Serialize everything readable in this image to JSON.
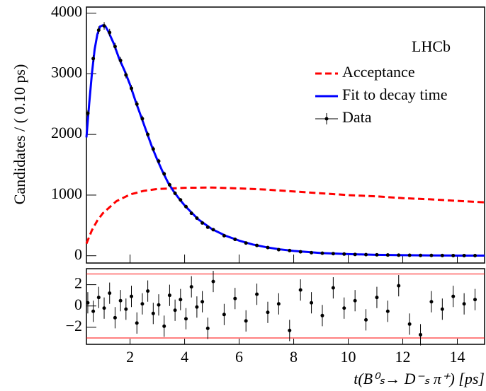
{
  "chart_data": [
    {
      "type": "line",
      "annotation": "LHCb",
      "y_label": "Candidates / ( 0.10 ps)",
      "xlim": [
        0.4,
        15
      ],
      "xticks": [
        2,
        4,
        6,
        8,
        10,
        12,
        14
      ],
      "ylim": [
        -120,
        4100
      ],
      "yticks": [
        0,
        1000,
        2000,
        3000,
        4000
      ],
      "legend": "upper right",
      "series": [
        {
          "name": "Acceptance",
          "color": "#ff0000",
          "style": "dashed",
          "x": [
            0.4,
            0.6,
            0.8,
            1.0,
            1.5,
            2,
            2.5,
            3,
            4,
            5,
            6,
            7,
            8,
            9,
            10,
            11,
            12,
            13,
            14,
            15
          ],
          "values": [
            200,
            420,
            580,
            700,
            900,
            1010,
            1070,
            1100,
            1120,
            1125,
            1110,
            1090,
            1060,
            1030,
            1000,
            980,
            950,
            930,
            905,
            880
          ]
        },
        {
          "name": "Fit to decay time",
          "color": "#0000ff",
          "style": "solid",
          "x": [
            0.4,
            0.5,
            0.6,
            0.7,
            0.8,
            0.9,
            1.0,
            1.1,
            1.2,
            1.4,
            1.6,
            1.8,
            2.0,
            2.2,
            2.4,
            2.6,
            2.8,
            3.0,
            3.2,
            3.4,
            3.6,
            3.8,
            4.0,
            4.5,
            5.0,
            5.5,
            6.0,
            6.5,
            7.0,
            7.5,
            8.0,
            9,
            10,
            11,
            12,
            13,
            14,
            15
          ],
          "values": [
            1950,
            2500,
            3000,
            3400,
            3650,
            3780,
            3800,
            3780,
            3700,
            3500,
            3250,
            3050,
            2820,
            2550,
            2300,
            2050,
            1800,
            1580,
            1380,
            1200,
            1060,
            940,
            830,
            600,
            440,
            330,
            250,
            185,
            140,
            105,
            80,
            45,
            27,
            16,
            9,
            5,
            3,
            2
          ]
        },
        {
          "name": "Data",
          "color": "#000000",
          "style": "errorbar",
          "x": [
            0.45,
            0.65,
            0.85,
            1.05,
            1.25,
            1.45,
            1.65,
            1.85,
            2.05,
            2.25,
            2.45,
            2.65,
            2.85,
            3.05,
            3.25,
            3.45,
            3.65,
            3.85,
            4.05,
            4.25,
            4.45,
            4.65,
            4.85,
            5.05,
            5.45,
            5.85,
            6.25,
            6.65,
            7.05,
            7.45,
            7.85,
            8.25,
            8.65,
            9.05,
            9.45,
            9.85,
            10.25,
            10.65,
            11.05,
            11.45,
            11.85,
            12.25,
            12.65,
            13.05,
            13.45,
            13.85,
            14.25,
            14.65
          ],
          "values": [
            2350,
            3250,
            3720,
            3790,
            3680,
            3450,
            3220,
            2980,
            2760,
            2500,
            2260,
            2000,
            1760,
            1560,
            1350,
            1170,
            1030,
            920,
            810,
            700,
            620,
            540,
            470,
            430,
            330,
            270,
            210,
            170,
            135,
            100,
            85,
            65,
            50,
            42,
            35,
            28,
            22,
            18,
            15,
            12,
            10,
            8,
            6,
            5,
            4,
            3,
            3,
            2
          ],
          "errors": [
            50,
            57,
            61,
            62,
            61,
            59,
            57,
            55,
            53,
            50,
            48,
            45,
            42,
            40,
            37,
            34,
            32,
            30,
            28,
            26,
            25,
            23,
            22,
            21,
            18,
            16,
            15,
            13,
            12,
            10,
            9,
            8,
            7,
            6,
            6,
            5,
            5,
            4,
            4,
            3,
            3,
            3,
            2,
            2,
            2,
            2,
            2,
            1
          ]
        }
      ]
    },
    {
      "type": "errorbar",
      "x_label": "t(B⁰ₛ→ D⁻ₛ π⁺) [ps]",
      "xlim": [
        0.4,
        15
      ],
      "xticks": [
        2,
        4,
        6,
        8,
        10,
        12,
        14
      ],
      "ylim": [
        -3.6,
        3.5
      ],
      "yticks": [
        {
          "value": -2,
          "label": "−2"
        },
        0,
        2
      ],
      "hlines": [
        -3,
        3
      ],
      "hline_color": "#ff0000",
      "color": "#000000",
      "x": [
        0.45,
        0.65,
        0.85,
        1.05,
        1.25,
        1.45,
        1.65,
        1.85,
        2.05,
        2.25,
        2.45,
        2.65,
        2.85,
        3.05,
        3.25,
        3.45,
        3.65,
        3.85,
        4.05,
        4.25,
        4.45,
        4.65,
        4.85,
        5.05,
        5.45,
        5.85,
        6.25,
        6.65,
        7.05,
        7.45,
        7.85,
        8.25,
        8.65,
        9.05,
        9.45,
        9.85,
        10.25,
        10.65,
        11.05,
        11.45,
        11.85,
        12.25,
        12.65,
        13.05,
        13.45,
        13.85,
        14.25,
        14.65
      ],
      "values": [
        0.3,
        -0.5,
        0.8,
        -0.2,
        1.2,
        -1.1,
        0.5,
        -0.3,
        0.9,
        -1.6,
        0.2,
        1.4,
        -0.7,
        0.1,
        -1.9,
        1.0,
        -0.4,
        0.6,
        -1.2,
        1.8,
        -0.1,
        0.4,
        -2.1,
        2.3,
        -0.8,
        0.7,
        -1.4,
        1.1,
        -0.6,
        0.2,
        -2.3,
        1.5,
        0.3,
        -0.9,
        1.7,
        -0.2,
        0.5,
        -1.3,
        0.8,
        -0.5,
        1.9,
        -1.7,
        -2.7,
        0.4,
        -0.3,
        0.9,
        0.2,
        0.6
      ],
      "errors": [
        1,
        1,
        1,
        1,
        1,
        1,
        1,
        1,
        1,
        1,
        1,
        1,
        1,
        1,
        1,
        1,
        1,
        1,
        1,
        1,
        1,
        1,
        1,
        1,
        1,
        1,
        1,
        1,
        1,
        1,
        1,
        1,
        1,
        1,
        1,
        1,
        1,
        1,
        1,
        1,
        1,
        1,
        1,
        1,
        1,
        1,
        1,
        1
      ]
    }
  ]
}
